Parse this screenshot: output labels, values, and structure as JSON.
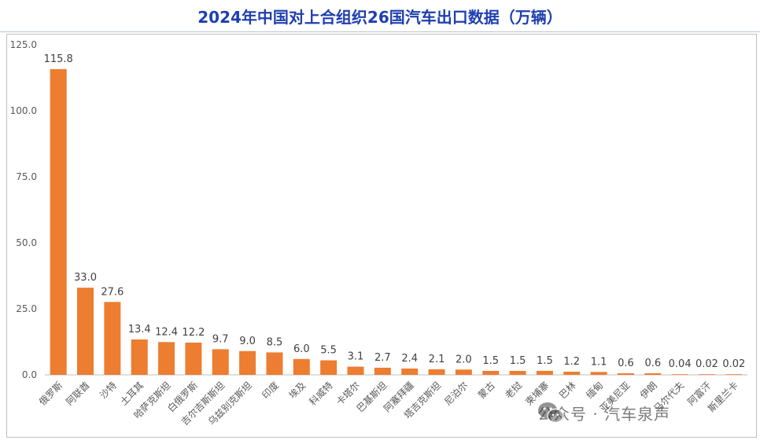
{
  "title": "2024年中国对上合组织26国汽车出口数据（万辆）",
  "watermark": "公众号 · 汽车泉声",
  "colors": {
    "bar": "#ed7d31",
    "title": "#1f3fb0",
    "axis": "#bfbfbf"
  },
  "chart_data": {
    "type": "bar",
    "title": "2024年中国对上合组织26国汽车出口数据（万辆）",
    "xlabel": "",
    "ylabel": "",
    "ylim": [
      0,
      125
    ],
    "yticks": [
      "0.0",
      "25.0",
      "50.0",
      "75.0",
      "100.0",
      "125.0"
    ],
    "grid": false,
    "categories": [
      "俄罗斯",
      "阿联酋",
      "沙特",
      "土耳其",
      "哈萨克斯坦",
      "白俄罗斯",
      "吉尔吉斯斯坦",
      "乌兹别克斯坦",
      "印度",
      "埃及",
      "科威特",
      "卡塔尔",
      "巴基斯坦",
      "阿塞拜疆",
      "塔吉克斯坦",
      "尼泊尔",
      "蒙古",
      "老挝",
      "柬埔寨",
      "巴林",
      "缅甸",
      "亚美尼亚",
      "伊朗",
      "马尔代夫",
      "阿富汗",
      "斯里兰卡"
    ],
    "values": [
      115.8,
      33.0,
      27.6,
      13.4,
      12.4,
      12.2,
      9.7,
      9.0,
      8.5,
      6.0,
      5.5,
      3.1,
      2.7,
      2.4,
      2.1,
      2.0,
      1.5,
      1.5,
      1.5,
      1.2,
      1.1,
      0.6,
      0.6,
      0.04,
      0.02,
      0.02
    ],
    "labels": [
      "115.8",
      "33.0",
      "27.6",
      "13.4",
      "12.4",
      "12.2",
      "9.7",
      "9.0",
      "8.5",
      "6.0",
      "5.5",
      "3.1",
      "2.7",
      "2.4",
      "2.1",
      "2.0",
      "1.5",
      "1.5",
      "1.5",
      "1.2",
      "1.1",
      "0.6",
      "0.6",
      "0.04",
      "0.02",
      "0.02"
    ]
  }
}
